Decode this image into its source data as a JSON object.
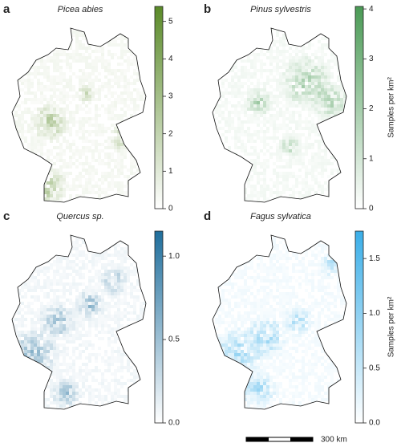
{
  "panels": [
    {
      "letter": "a",
      "title": "Picea abies",
      "color": "#5a8a28",
      "clim": [
        0,
        5.4
      ],
      "ticks": [
        0,
        1,
        2,
        3,
        4,
        5
      ]
    },
    {
      "letter": "b",
      "title": "Pinus sylvestris",
      "color": "#4a9a55",
      "clim": [
        0,
        4.05
      ],
      "ticks": [
        0,
        1,
        2,
        3,
        4
      ],
      "label": "Samples per km²"
    },
    {
      "letter": "c",
      "title": "Quercus sp.",
      "color": "#1f6e9c",
      "clim": [
        0,
        1.15
      ],
      "ticks": [
        {
          "value": 0,
          "label": "0.0"
        },
        0.5,
        {
          "value": 1,
          "label": "1.0"
        }
      ]
    },
    {
      "letter": "d",
      "title": "Fagus sylvatica",
      "color": "#3aaee8",
      "clim": [
        0,
        1.75
      ],
      "ticks": [
        {
          "value": 0,
          "label": "0.0"
        },
        0.5,
        {
          "value": 1,
          "label": "1.0"
        },
        1.5
      ],
      "label": "Samples per km²"
    }
  ],
  "scale_bar": "300 km"
}
